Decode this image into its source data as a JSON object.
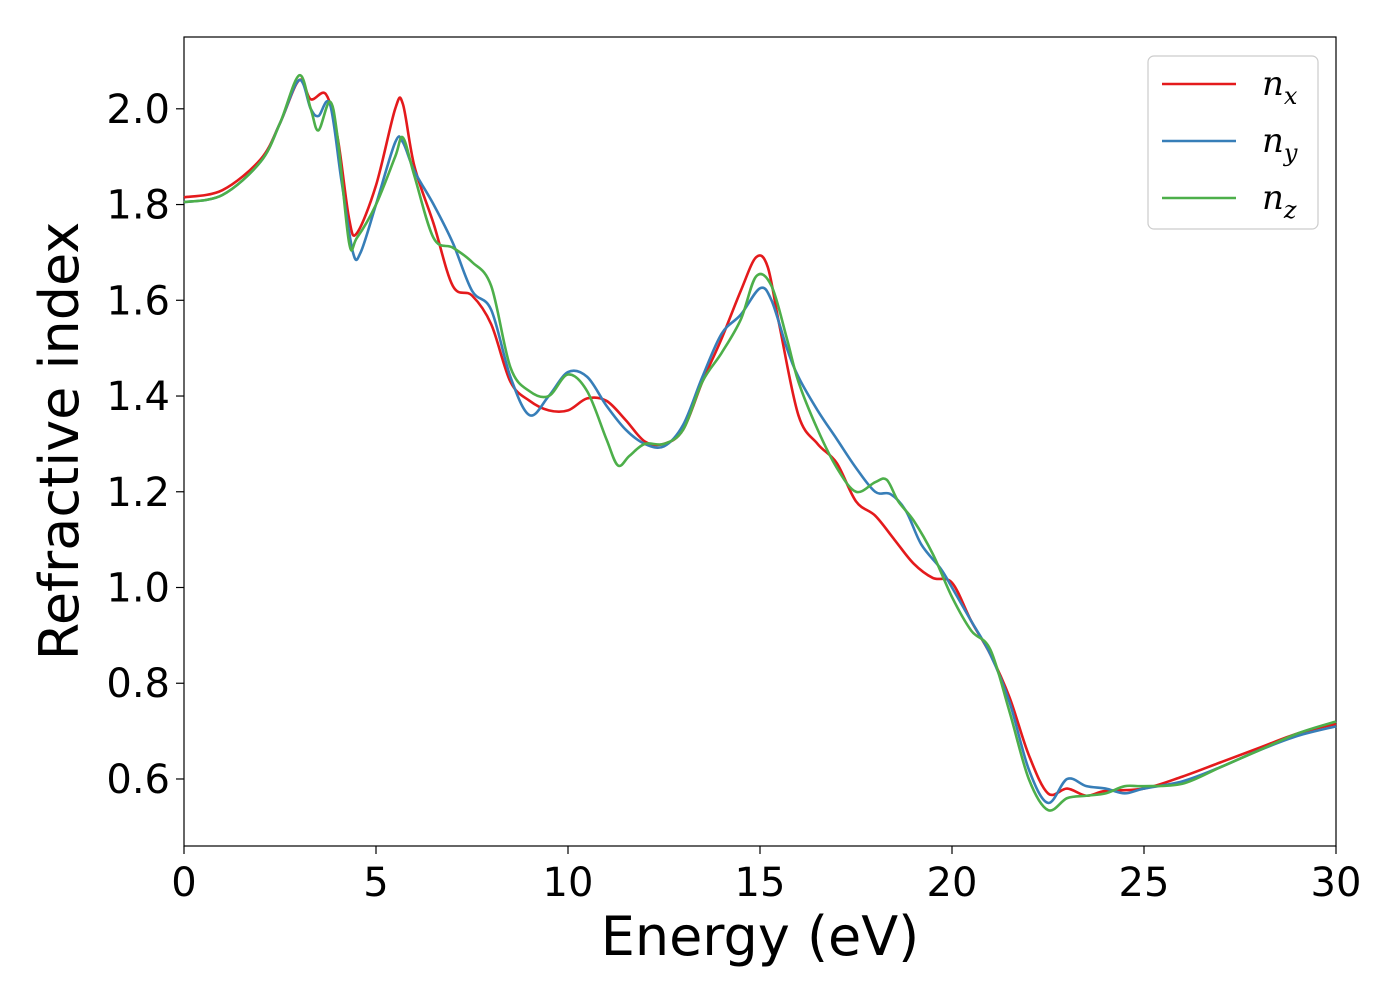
{
  "chart_data": {
    "type": "line",
    "title": "",
    "xlabel": "Energy (eV)",
    "ylabel": "Refractive index",
    "xlim": [
      0,
      30
    ],
    "ylim": [
      0.46,
      2.15
    ],
    "xticks": [
      0,
      5,
      10,
      15,
      20,
      25,
      30
    ],
    "yticks": [
      0.6,
      0.8,
      1.0,
      1.2,
      1.4,
      1.6,
      1.8,
      2.0
    ],
    "xtick_labels": [
      "0",
      "5",
      "10",
      "15",
      "20",
      "25",
      "30"
    ],
    "ytick_labels": [
      "0.6",
      "0.8",
      "1.0",
      "1.2",
      "1.4",
      "1.6",
      "1.8",
      "2.0"
    ],
    "grid": false,
    "legend_position": "top-right",
    "series": [
      {
        "name": "n_x",
        "label_base": "n",
        "label_sub": "x",
        "color": "#e41a1c",
        "x": [
          0,
          1,
          2,
          2.5,
          3,
          3.3,
          3.7,
          4.0,
          4.3,
          4.5,
          5.0,
          5.5,
          5.7,
          6.0,
          6.5,
          7.0,
          7.5,
          8.0,
          8.5,
          9.0,
          9.5,
          10.0,
          10.5,
          11.0,
          11.5,
          12.0,
          12.5,
          13.0,
          13.5,
          14.0,
          14.5,
          14.9,
          15.2,
          15.5,
          16.0,
          16.5,
          17.0,
          17.5,
          18.0,
          18.5,
          19.0,
          19.5,
          20.0,
          20.5,
          21.0,
          21.5,
          22.0,
          22.5,
          23.0,
          23.5,
          24.0,
          25.0,
          26.0,
          27.0,
          28.0,
          29.0,
          30.0
        ],
        "y": [
          1.815,
          1.83,
          1.895,
          1.97,
          2.06,
          2.02,
          2.03,
          1.94,
          1.77,
          1.74,
          1.84,
          2.0,
          2.01,
          1.88,
          1.76,
          1.63,
          1.61,
          1.55,
          1.43,
          1.39,
          1.37,
          1.37,
          1.395,
          1.39,
          1.35,
          1.305,
          1.3,
          1.33,
          1.43,
          1.52,
          1.62,
          1.69,
          1.67,
          1.55,
          1.36,
          1.3,
          1.26,
          1.18,
          1.15,
          1.1,
          1.05,
          1.02,
          1.01,
          0.93,
          0.86,
          0.77,
          0.65,
          0.57,
          0.58,
          0.565,
          0.575,
          0.58,
          0.605,
          0.635,
          0.665,
          0.695,
          0.715
        ]
      },
      {
        "name": "n_y",
        "label_base": "n",
        "label_sub": "y",
        "color": "#377eb8",
        "x": [
          0,
          1,
          2,
          2.5,
          3,
          3.3,
          3.5,
          3.8,
          4.1,
          4.4,
          4.6,
          5.0,
          5.5,
          5.7,
          6.0,
          6.5,
          7.0,
          7.5,
          8.0,
          8.5,
          9.0,
          9.5,
          10.0,
          10.5,
          11.0,
          11.5,
          12.0,
          12.5,
          13.0,
          13.5,
          14.0,
          14.5,
          15.0,
          15.3,
          15.7,
          16.0,
          16.5,
          17.0,
          17.5,
          18.0,
          18.4,
          18.8,
          19.2,
          19.7,
          20.0,
          20.5,
          21.0,
          21.5,
          22.0,
          22.5,
          23.0,
          23.5,
          24.0,
          24.5,
          25.0,
          26.0,
          27.0,
          28.0,
          29.0,
          30.0
        ],
        "y": [
          1.805,
          1.82,
          1.89,
          1.97,
          2.06,
          2.0,
          1.985,
          2.01,
          1.85,
          1.7,
          1.7,
          1.8,
          1.93,
          1.93,
          1.87,
          1.8,
          1.72,
          1.62,
          1.58,
          1.44,
          1.36,
          1.4,
          1.45,
          1.44,
          1.38,
          1.33,
          1.3,
          1.295,
          1.34,
          1.44,
          1.53,
          1.57,
          1.625,
          1.6,
          1.5,
          1.44,
          1.37,
          1.31,
          1.25,
          1.2,
          1.195,
          1.16,
          1.09,
          1.04,
          1.0,
          0.93,
          0.86,
          0.76,
          0.62,
          0.55,
          0.6,
          0.585,
          0.58,
          0.57,
          0.58,
          0.595,
          0.625,
          0.66,
          0.69,
          0.71
        ]
      },
      {
        "name": "n_z",
        "label_base": "n",
        "label_sub": "z",
        "color": "#4daf4a",
        "x": [
          0,
          1,
          2,
          2.5,
          3,
          3.3,
          3.5,
          3.8,
          4.0,
          4.3,
          4.5,
          5.0,
          5.5,
          5.7,
          6.0,
          6.5,
          7.0,
          7.5,
          8.0,
          8.5,
          9.0,
          9.5,
          10.0,
          10.5,
          11.0,
          11.3,
          11.6,
          12.0,
          12.5,
          13.0,
          13.5,
          14.0,
          14.5,
          14.9,
          15.3,
          15.7,
          16.0,
          16.5,
          17.0,
          17.5,
          18.0,
          18.3,
          18.6,
          19.0,
          19.5,
          20.0,
          20.5,
          21.0,
          21.5,
          22.0,
          22.5,
          23.0,
          23.5,
          24.0,
          24.5,
          25.0,
          26.0,
          27.0,
          28.0,
          29.0,
          30.0
        ],
        "y": [
          1.805,
          1.82,
          1.89,
          1.97,
          2.07,
          2.0,
          1.955,
          2.015,
          1.94,
          1.72,
          1.73,
          1.8,
          1.9,
          1.94,
          1.86,
          1.73,
          1.71,
          1.68,
          1.63,
          1.46,
          1.41,
          1.4,
          1.445,
          1.41,
          1.31,
          1.255,
          1.275,
          1.3,
          1.3,
          1.33,
          1.43,
          1.49,
          1.56,
          1.65,
          1.63,
          1.52,
          1.43,
          1.33,
          1.25,
          1.2,
          1.22,
          1.225,
          1.18,
          1.14,
          1.07,
          0.98,
          0.91,
          0.87,
          0.74,
          0.6,
          0.535,
          0.56,
          0.565,
          0.57,
          0.585,
          0.585,
          0.59,
          0.625,
          0.66,
          0.695,
          0.72
        ]
      }
    ]
  }
}
